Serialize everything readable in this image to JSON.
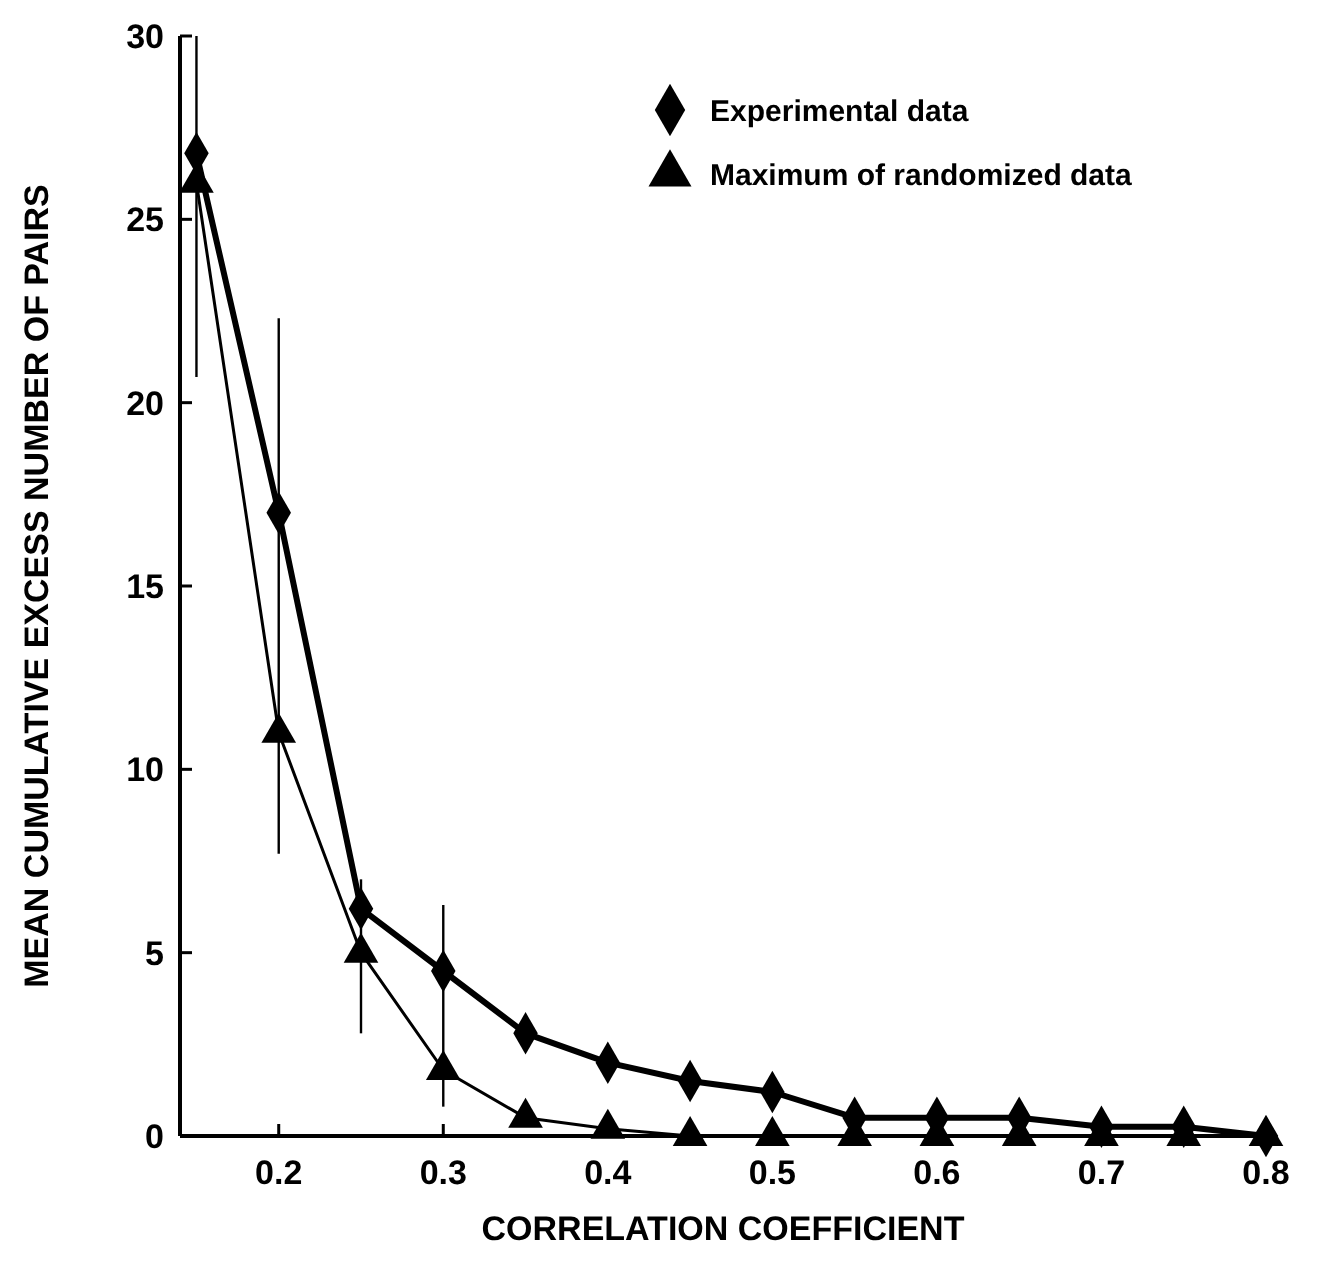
{
  "chart_data": {
    "type": "line",
    "xlabel": "CORRELATION COEFFICIENT",
    "ylabel": "MEAN CUMULATIVE EXCESS NUMBER OF PAIRS",
    "x": [
      0.15,
      0.2,
      0.25,
      0.3,
      0.35,
      0.4,
      0.45,
      0.5,
      0.55,
      0.6,
      0.65,
      0.7,
      0.75,
      0.8
    ],
    "series": [
      {
        "name": "Experimental data",
        "color": "#000000",
        "marker": "diamond",
        "values": [
          26.8,
          17,
          6.2,
          4.5,
          2.8,
          2.0,
          1.5,
          1.2,
          0.5,
          0.5,
          0.5,
          0.25,
          0.25,
          0
        ],
        "errors": [
          [
            20.7,
            30
          ],
          [
            7.7,
            22.3
          ],
          [
            2.8,
            7
          ],
          [
            0.8,
            6.3
          ],
          null,
          null,
          null,
          null,
          null,
          null,
          null,
          null,
          null,
          null
        ]
      },
      {
        "name": "Maximum of randomized data",
        "color": "#000000",
        "marker": "triangle",
        "values": [
          26,
          11,
          5,
          1.8,
          0.5,
          0.2,
          0,
          0,
          0,
          0,
          0,
          0,
          0,
          0
        ]
      }
    ],
    "xlim": [
      0.14,
      0.8
    ],
    "xticks": [
      0.2,
      0.3,
      0.4,
      0.5,
      0.6,
      0.7,
      0.8
    ],
    "ylim": [
      0,
      30
    ],
    "yticks": [
      0,
      5,
      10,
      15,
      20,
      25,
      30
    ],
    "grid": false,
    "legend": "top right"
  }
}
